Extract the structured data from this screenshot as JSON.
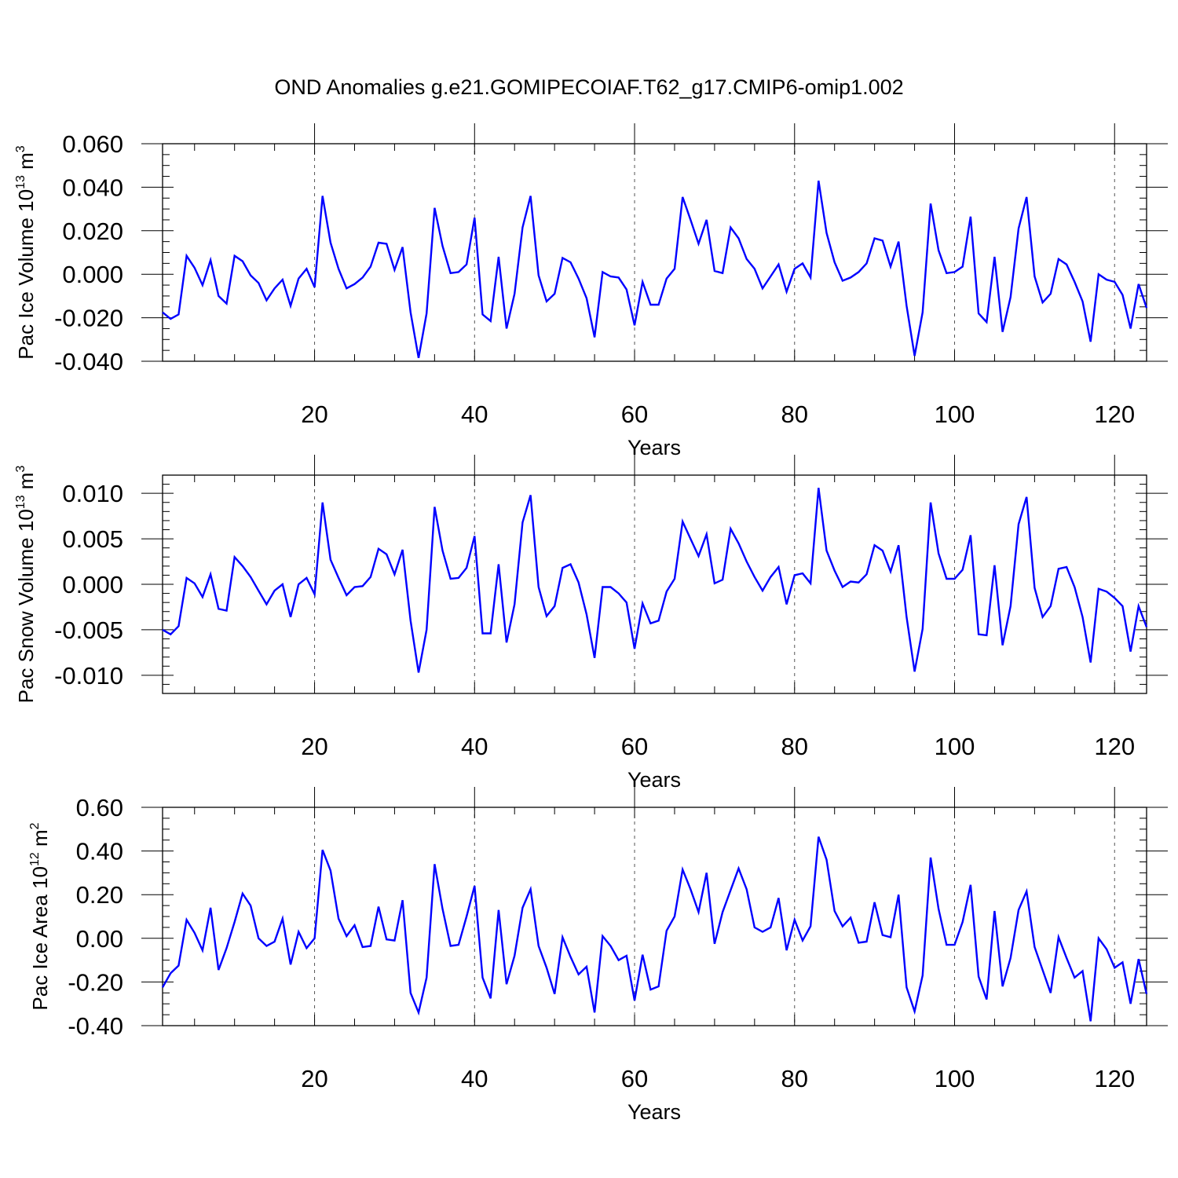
{
  "title": "OND Anomalies g.e21.GOMIPECOIAF.T62_g17.CMIP6-omip1.002",
  "chart_data": [
    {
      "type": "line",
      "name": "pac-ice-volume",
      "ylabel_main": "Pac Ice Volume 10",
      "ylabel_exp": "13",
      "ylabel_unit": " m",
      "ylabel_unit_exp": "3",
      "xlabel": "Years",
      "xlim": [
        1,
        124
      ],
      "ylim": [
        -0.04,
        0.06
      ],
      "xticks": [
        20,
        40,
        60,
        80,
        100,
        120
      ],
      "xtick_labels": [
        "20",
        "40",
        "60",
        "80",
        "100",
        "120"
      ],
      "yticks": [
        -0.04,
        -0.02,
        0,
        0.02,
        0.04,
        0.06
      ],
      "ytick_labels": [
        "-0.040",
        "-0.020",
        "0.000",
        "0.020",
        "0.040",
        "0.060"
      ],
      "yminor": [
        -0.035,
        -0.03,
        -0.025,
        -0.015,
        -0.01,
        -0.005,
        0.005,
        0.01,
        0.015,
        0.025,
        0.03,
        0.035,
        0.045,
        0.05,
        0.055
      ],
      "line_color": "#0000ff",
      "values": [
        -0.0175,
        -0.0205,
        -0.0185,
        0.0085,
        0.003,
        -0.005,
        0.0065,
        -0.01,
        -0.0135,
        0.0085,
        0.006,
        -0.0005,
        -0.004,
        -0.012,
        -0.0065,
        -0.0025,
        -0.0145,
        -0.002,
        0.0025,
        -0.006,
        0.036,
        0.0145,
        0.0025,
        -0.0065,
        -0.0045,
        -0.0015,
        0.0035,
        0.0145,
        0.014,
        0.002,
        0.0125,
        -0.0175,
        -0.0385,
        -0.018,
        0.0305,
        0.013,
        0.0005,
        0.001,
        0.0045,
        0.026,
        -0.0185,
        -0.0215,
        0.008,
        -0.025,
        -0.009,
        0.0215,
        0.036,
        -0.0005,
        -0.0125,
        -0.009,
        0.0075,
        0.0055,
        -0.002,
        -0.011,
        -0.029,
        0.001,
        -0.001,
        -0.0015,
        -0.007,
        -0.0235,
        -0.0035,
        -0.014,
        -0.014,
        -0.002,
        0.0025,
        0.0355,
        0.025,
        0.014,
        0.025,
        0.0015,
        0.0005,
        0.0215,
        0.0165,
        0.007,
        0.0025,
        -0.0065,
        -0.001,
        0.0045,
        -0.008,
        0.0025,
        0.005,
        -0.0015,
        0.043,
        0.019,
        0.0055,
        -0.003,
        -0.0015,
        0.001,
        0.005,
        0.0165,
        0.0155,
        0.0035,
        0.015,
        -0.0145,
        -0.0375,
        -0.0175,
        0.0325,
        0.011,
        0.0005,
        0.001,
        0.0035,
        0.0265,
        -0.018,
        -0.022,
        0.008,
        -0.0265,
        -0.0105,
        0.021,
        0.0355,
        -0.001,
        -0.013,
        -0.009,
        0.007,
        0.0045,
        -0.0035,
        -0.0125,
        -0.031,
        0,
        -0.0025,
        -0.0035,
        -0.0095,
        -0.025,
        -0.0045,
        -0.0155
      ]
    },
    {
      "type": "line",
      "name": "pac-snow-volume",
      "ylabel_main": "Pac Snow Volume 10",
      "ylabel_exp": "13",
      "ylabel_unit": " m",
      "ylabel_unit_exp": "3",
      "xlabel": "Years",
      "xlim": [
        1,
        124
      ],
      "ylim": [
        -0.012,
        0.012
      ],
      "xticks": [
        20,
        40,
        60,
        80,
        100,
        120
      ],
      "xtick_labels": [
        "20",
        "40",
        "60",
        "80",
        "100",
        "120"
      ],
      "yticks": [
        -0.01,
        -0.005,
        0,
        0.005,
        0.01
      ],
      "ytick_labels": [
        "-0.010",
        "-0.005",
        "0.000",
        "0.005",
        "0.010"
      ],
      "yminor": [
        -0.012,
        -0.011,
        -0.009,
        -0.008,
        -0.007,
        -0.006,
        -0.004,
        -0.003,
        -0.002,
        -0.001,
        0.001,
        0.002,
        0.003,
        0.004,
        0.006,
        0.007,
        0.008,
        0.009,
        0.011,
        0.012
      ],
      "line_color": "#0000ff",
      "values": [
        -0.005,
        -0.0055,
        -0.0046,
        0.0007,
        0.0001,
        -0.0014,
        0.0011,
        -0.0027,
        -0.0029,
        0.003,
        0.002,
        0.0008,
        -0.0007,
        -0.0022,
        -0.0007,
        0,
        -0.0036,
        0,
        0.0007,
        -0.0011,
        0.009,
        0.0027,
        0.0007,
        -0.0012,
        -0.0003,
        -0.0002,
        0.0008,
        0.0039,
        0.0033,
        0.0011,
        0.0038,
        -0.004,
        -0.0097,
        -0.005,
        0.0085,
        0.0037,
        0.0006,
        0.0007,
        0.0018,
        0.0053,
        -0.0054,
        -0.0054,
        0.0022,
        -0.0064,
        -0.0022,
        0.0068,
        0.0098,
        -0.0003,
        -0.0035,
        -0.0024,
        0.0018,
        0.0022,
        0.0002,
        -0.0033,
        -0.0081,
        -0.0003,
        -0.0003,
        -0.001,
        -0.002,
        -0.0071,
        -0.0021,
        -0.0043,
        -0.004,
        -0.0008,
        0.0006,
        0.0069,
        0.005,
        0.0031,
        0.0055,
        0.0001,
        0.0005,
        0.0061,
        0.0045,
        0.0025,
        0.0008,
        -0.0007,
        0.0008,
        0.0019,
        -0.0022,
        0.001,
        0.0012,
        0.0001,
        0.0106,
        0.0037,
        0.0015,
        -0.0003,
        0.0003,
        0.0002,
        0.0011,
        0.0043,
        0.0037,
        0.0014,
        0.0043,
        -0.0036,
        -0.0096,
        -0.0049,
        0.009,
        0.0034,
        0.0006,
        0.0006,
        0.0016,
        0.0054,
        -0.0055,
        -0.0056,
        0.0021,
        -0.0067,
        -0.0024,
        0.0066,
        0.0096,
        -0.0004,
        -0.0036,
        -0.0024,
        0.0017,
        0.0019,
        -0.0003,
        -0.0036,
        -0.0086,
        -0.0005,
        -0.0008,
        -0.0015,
        -0.0024,
        -0.0074,
        -0.0024,
        -0.0047
      ]
    },
    {
      "type": "line",
      "name": "pac-ice-area",
      "ylabel_main": "Pac Ice Area 10",
      "ylabel_exp": "12",
      "ylabel_unit": " m",
      "ylabel_unit_exp": "2",
      "xlabel": "Years",
      "xlim": [
        1,
        124
      ],
      "ylim": [
        -0.4,
        0.6
      ],
      "xticks": [
        20,
        40,
        60,
        80,
        100,
        120
      ],
      "xtick_labels": [
        "20",
        "40",
        "60",
        "80",
        "100",
        "120"
      ],
      "yticks": [
        -0.4,
        -0.2,
        0,
        0.2,
        0.4,
        0.6
      ],
      "ytick_labels": [
        "-0.40",
        "-0.20",
        "0.00",
        "0.20",
        "0.40",
        "0.60"
      ],
      "yminor": [
        -0.35,
        -0.3,
        -0.25,
        -0.15,
        -0.1,
        -0.05,
        0.05,
        0.1,
        0.15,
        0.25,
        0.3,
        0.35,
        0.45,
        0.5,
        0.55
      ],
      "line_color": "#0000ff",
      "values": [
        -0.225,
        -0.16,
        -0.125,
        0.085,
        0.025,
        -0.055,
        0.14,
        -0.145,
        -0.045,
        0.075,
        0.205,
        0.15,
        0,
        -0.035,
        -0.015,
        0.09,
        -0.12,
        0.03,
        -0.045,
        0,
        0.405,
        0.31,
        0.09,
        0.01,
        0.06,
        -0.04,
        -0.035,
        0.145,
        -0.005,
        -0.01,
        0.175,
        -0.25,
        -0.34,
        -0.18,
        0.34,
        0.135,
        -0.035,
        -0.03,
        0.1,
        0.24,
        -0.18,
        -0.275,
        0.13,
        -0.21,
        -0.08,
        0.14,
        0.225,
        -0.035,
        -0.135,
        -0.255,
        0.005,
        -0.085,
        -0.165,
        -0.13,
        -0.34,
        0.01,
        -0.035,
        -0.1,
        -0.08,
        -0.285,
        -0.075,
        -0.235,
        -0.22,
        0.035,
        0.1,
        0.315,
        0.225,
        0.12,
        0.3,
        -0.025,
        0.12,
        0.22,
        0.32,
        0.225,
        0.05,
        0.03,
        0.05,
        0.185,
        -0.055,
        0.085,
        -0.01,
        0.055,
        0.465,
        0.36,
        0.125,
        0.055,
        0.095,
        -0.02,
        -0.015,
        0.165,
        0.015,
        0.005,
        0.2,
        -0.225,
        -0.335,
        -0.17,
        0.37,
        0.135,
        -0.03,
        -0.03,
        0.075,
        0.245,
        -0.175,
        -0.28,
        0.125,
        -0.22,
        -0.09,
        0.13,
        0.215,
        -0.04,
        -0.145,
        -0.25,
        0.005,
        -0.09,
        -0.18,
        -0.15,
        -0.38,
        0,
        -0.05,
        -0.135,
        -0.11,
        -0.3,
        -0.095,
        -0.255
      ]
    }
  ]
}
